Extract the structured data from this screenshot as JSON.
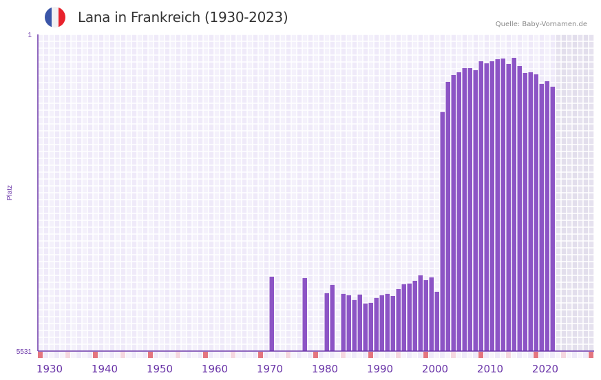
{
  "header": {
    "title": "Lana in Frankreich (1930-2023)",
    "source": "Quelle: Baby-Vornamen.de",
    "flag_icon": "france-flag-icon"
  },
  "colors": {
    "bar": "#8c54c5",
    "axis": "#6a35a8",
    "decade_marker": "#e4757f",
    "half_marker": "#f5d7e0",
    "flag_blue": "#3a55a8",
    "flag_white": "#f1f1f3",
    "flag_red": "#e8222c"
  },
  "chart_data": {
    "type": "bar",
    "title": "Lana in Frankreich (1930-2023)",
    "xlabel": "",
    "ylabel": "Platz",
    "y_inverted": true,
    "ylim": [
      1,
      5531
    ],
    "y_ticks": [
      "1",
      "5531"
    ],
    "xlim": [
      1928,
      2028
    ],
    "x_ticks": [
      "1930",
      "1940",
      "1950",
      "1960",
      "1970",
      "1980",
      "1990",
      "2000",
      "2010",
      "2020"
    ],
    "future_shaded_from": 2022,
    "years": [
      1970,
      1976,
      1980,
      1981,
      1983,
      1984,
      1985,
      1986,
      1987,
      1988,
      1989,
      1990,
      1991,
      1992,
      1993,
      1994,
      1995,
      1996,
      1997,
      1998,
      1999,
      2000,
      2001,
      2002,
      2003,
      2004,
      2005,
      2006,
      2007,
      2008,
      2009,
      2010,
      2011,
      2012,
      2013,
      2014,
      2015,
      2016,
      2017,
      2018,
      2019,
      2020,
      2021
    ],
    "values": [
      4232,
      4256,
      4520,
      4376,
      4532,
      4556,
      4640,
      4544,
      4700,
      4688,
      4604,
      4556,
      4532,
      4568,
      4448,
      4364,
      4352,
      4304,
      4208,
      4292,
      4244,
      4496,
      1358,
      830,
      710,
      662,
      590,
      590,
      626,
      470,
      506,
      470,
      434,
      422,
      518,
      410,
      554,
      674,
      662,
      698,
      866,
      818,
      914
    ]
  }
}
